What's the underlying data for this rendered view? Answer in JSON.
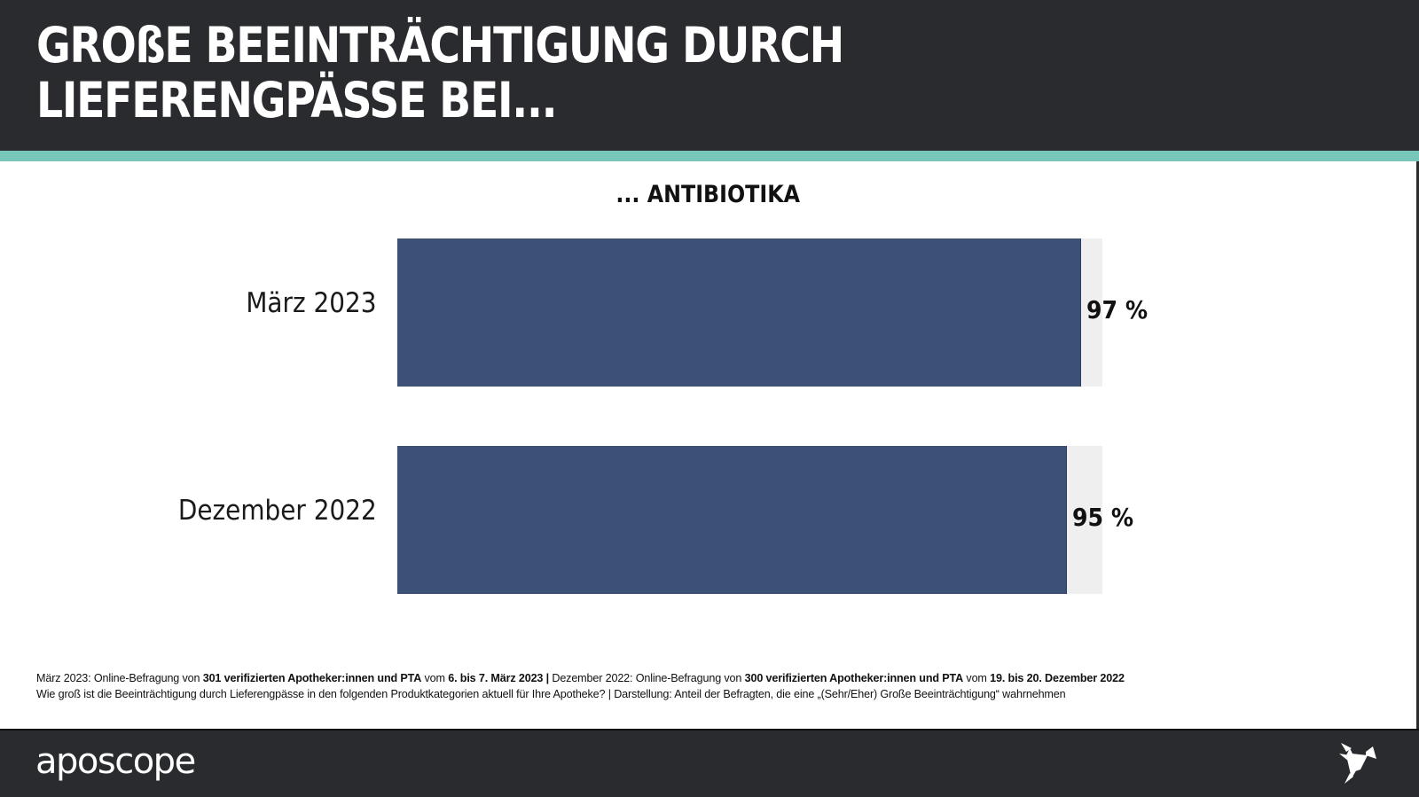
{
  "header": {
    "title_line1": "GROßE BEEINTRÄCHTIGUNG DURCH",
    "title_line2": "LIEFERENGPÄSSE BEI..."
  },
  "colors": {
    "header_bg": "#2a2b2f",
    "accent": "#78c6ba",
    "bar": "#3d5176",
    "track": "#efefef"
  },
  "chart_data": {
    "type": "bar",
    "orientation": "horizontal",
    "title": "... ANTIBIOTIKA",
    "categories": [
      "März 2023",
      "Dezember 2022"
    ],
    "values": [
      97,
      95
    ],
    "value_labels": [
      "97 %",
      "95 %"
    ],
    "xlim": [
      0,
      100
    ],
    "unit": "%",
    "grid": false,
    "legend": "none"
  },
  "notes": {
    "line1": [
      {
        "text": "März 2023: Online-Befragung von ",
        "bold": false
      },
      {
        "text": "301 verifizierten Apotheker:innen und PTA",
        "bold": true
      },
      {
        "text": " vom ",
        "bold": false
      },
      {
        "text": "6. bis 7. März 2023",
        "bold": true
      },
      {
        "text": " | ",
        "bold": true
      },
      {
        "text": "Dezember 2022: Online-Befragung von ",
        "bold": false
      },
      {
        "text": "300 verifizierten Apotheker:innen und PTA",
        "bold": true
      },
      {
        "text": " vom ",
        "bold": false
      },
      {
        "text": "19. bis 20. Dezember 2022",
        "bold": true
      }
    ],
    "line2": "Wie groß ist die Beeinträchtigung durch Lieferengpässe in den folgenden Produktkategorien aktuell für Ihre Apotheke? | Darstellung: Anteil der Befragten, die eine „(Sehr/Eher) Große Beeinträchtigung“ wahrnehmen"
  },
  "footer": {
    "logo_text": "aposcope",
    "logo_icon": "origami-bird-icon"
  }
}
